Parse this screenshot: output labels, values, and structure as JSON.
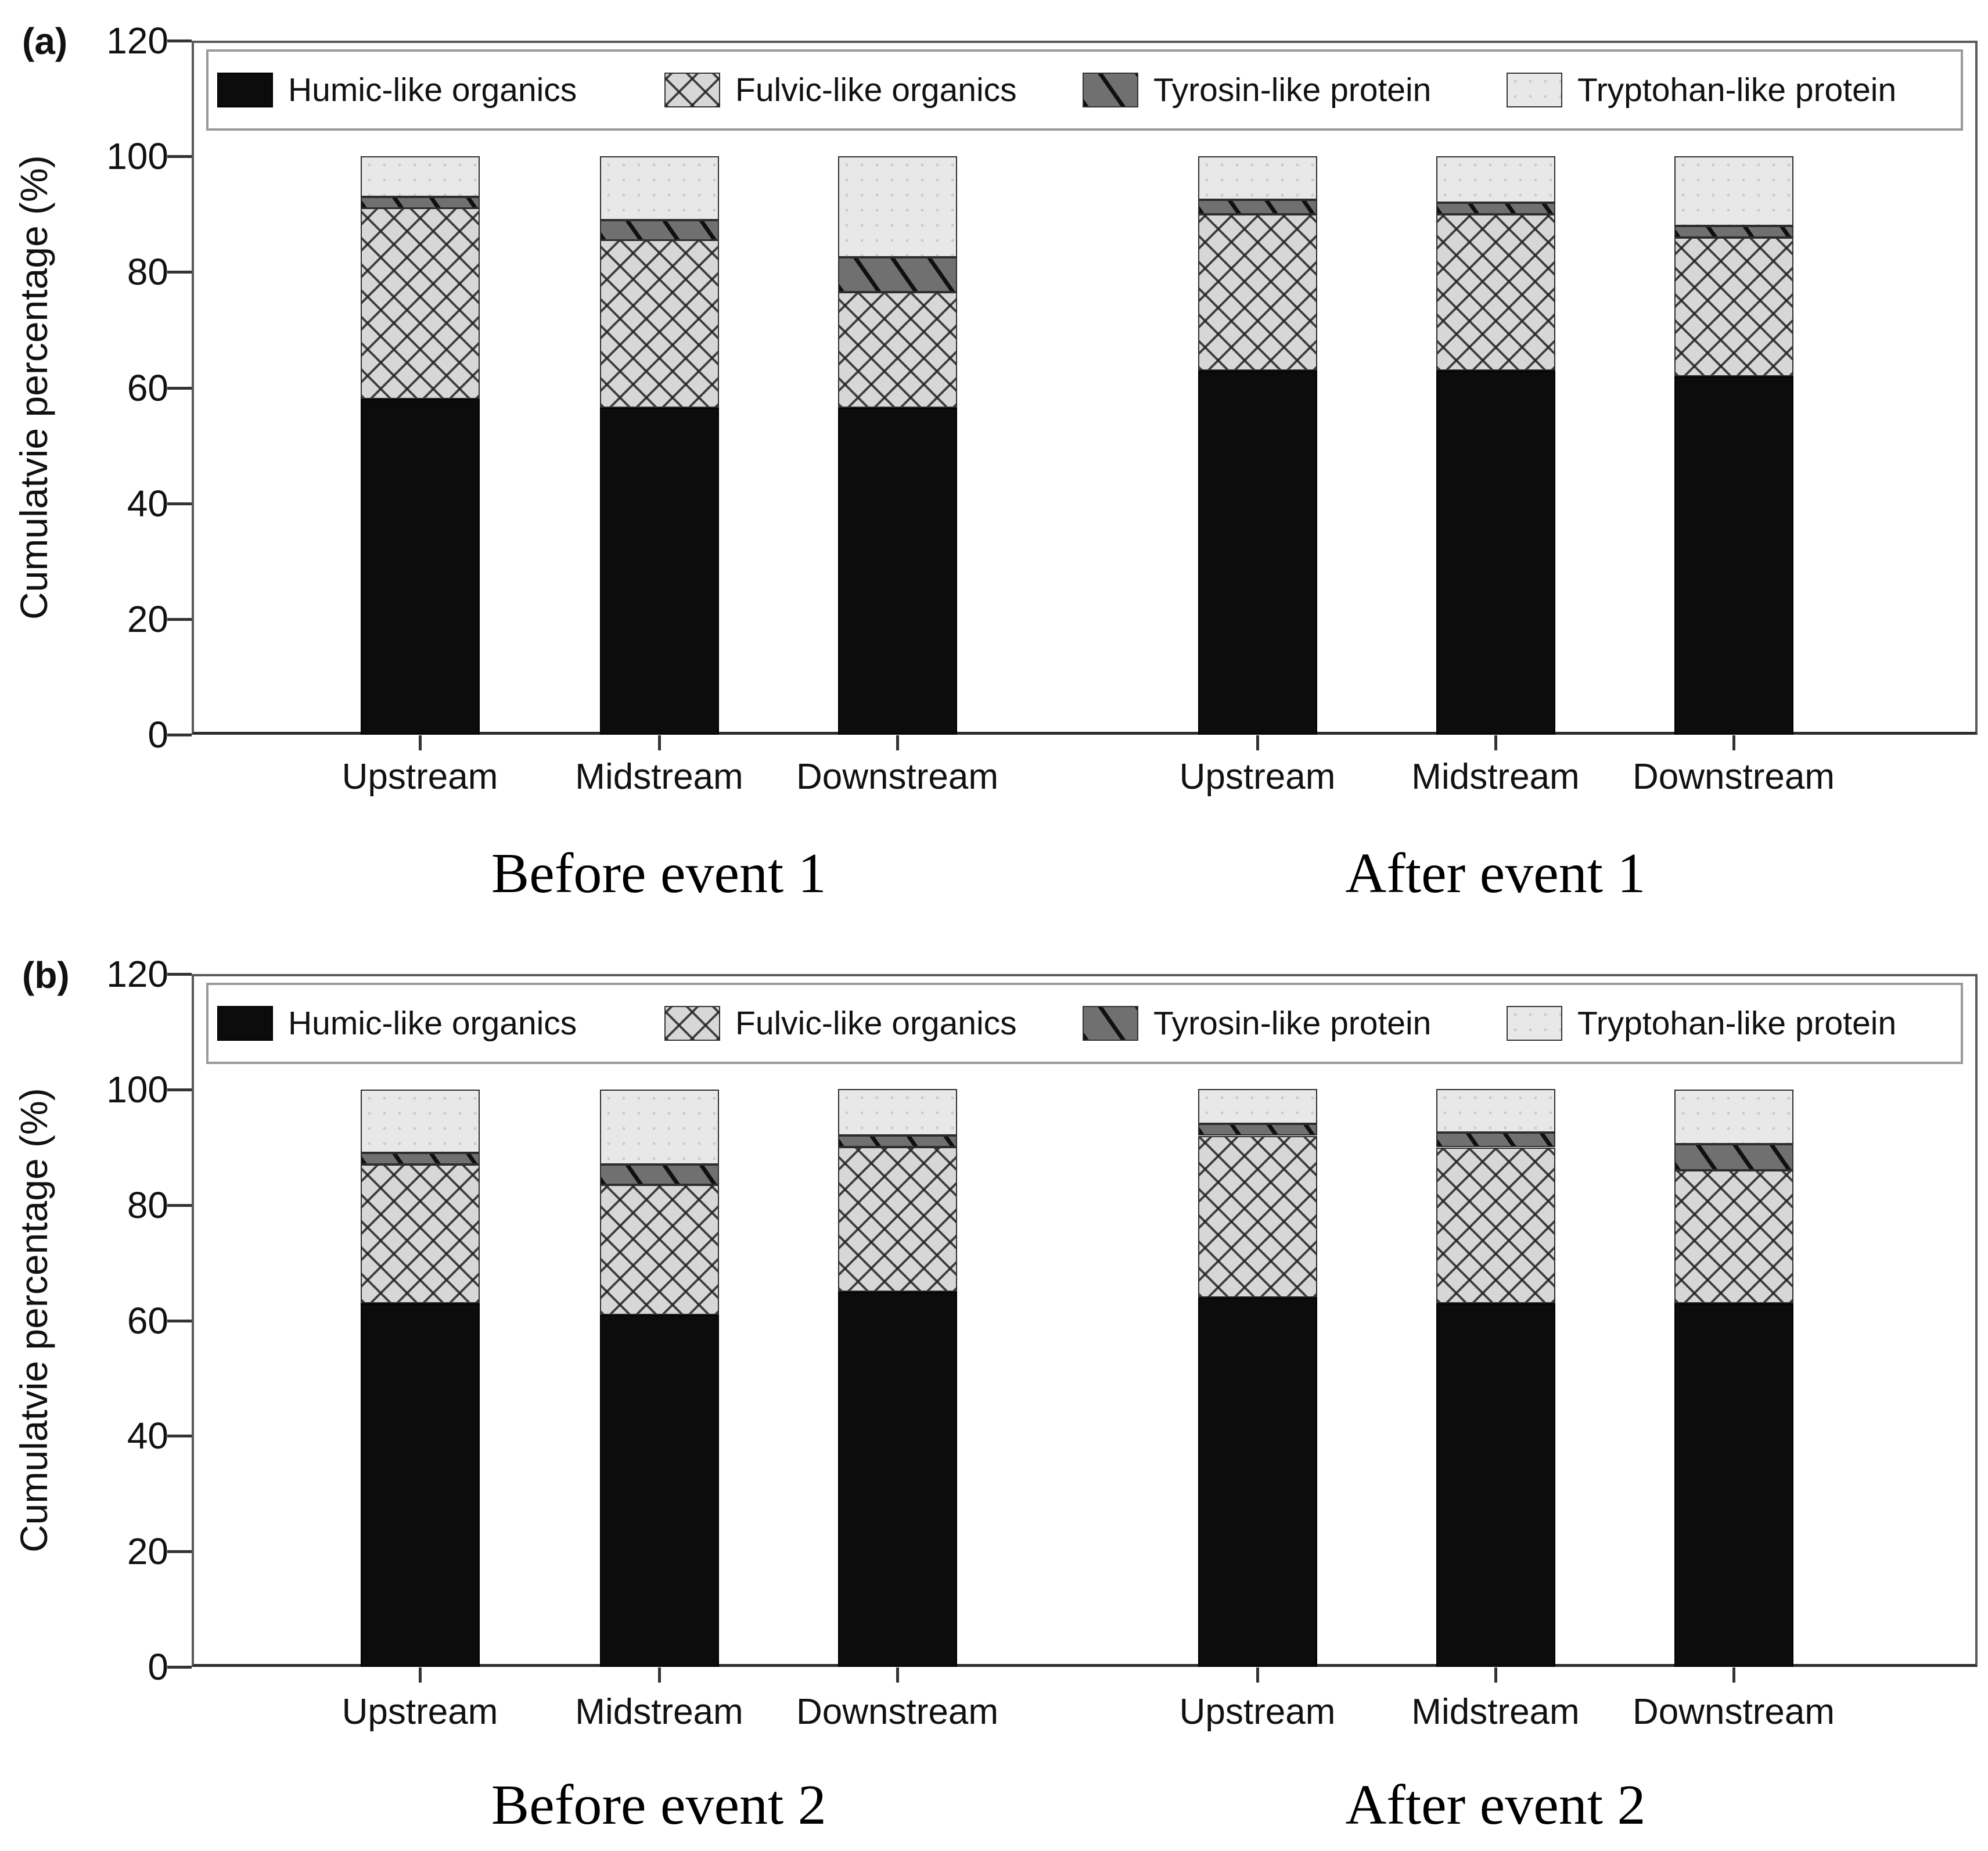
{
  "figure": {
    "y_axis_label": "Cumulatvie percentage (%)",
    "series_patterns": [
      "humic",
      "fulvic",
      "tyrosin",
      "tryptohan"
    ],
    "colors": {
      "humic_fill": "#0c0c0c",
      "fulvic_base": "#d7d7d7",
      "tyrosin_base": "#707070",
      "tryptohan_base": "#e8e8e8",
      "axis": "#333333",
      "text": "#111111"
    }
  },
  "chart_data": [
    {
      "panel": "(a)",
      "type": "bar",
      "stacked": true,
      "grid": false,
      "legend_position": "top-inside",
      "ylabel": "Cumulatvie percentage (%)",
      "ylim": [
        0,
        120
      ],
      "yticks": [
        0,
        20,
        40,
        60,
        80,
        100,
        120
      ],
      "categories": [
        "Upstream",
        "Midstream",
        "Downstream",
        "Upstream",
        "Midstream",
        "Downstream"
      ],
      "groups": [
        {
          "label": "Before event 1",
          "bar_indices": [
            0,
            1,
            2
          ]
        },
        {
          "label": "After event 1",
          "bar_indices": [
            3,
            4,
            5
          ]
        }
      ],
      "series": [
        {
          "name": "Humic-like organics",
          "values": [
            58.0,
            56.5,
            56.5,
            63.0,
            63.0,
            62.0
          ]
        },
        {
          "name": "Fulvic-like organics",
          "values": [
            33.0,
            29.0,
            20.0,
            27.0,
            27.0,
            24.0
          ]
        },
        {
          "name": "Tyrosin-like protein",
          "values": [
            2.0,
            3.5,
            6.0,
            2.5,
            2.0,
            2.0
          ]
        },
        {
          "name": "Tryptohan-like protein",
          "values": [
            7.0,
            11.0,
            17.5,
            7.5,
            8.0,
            12.0
          ]
        }
      ]
    },
    {
      "panel": "(b)",
      "type": "bar",
      "stacked": true,
      "grid": false,
      "legend_position": "top-inside",
      "ylabel": "Cumulatvie percentage (%)",
      "ylim": [
        0,
        120
      ],
      "yticks": [
        0,
        20,
        40,
        60,
        80,
        100,
        120
      ],
      "categories": [
        "Upstream",
        "Midstream",
        "Downstream",
        "Upstream",
        "Midstream",
        "Downstream"
      ],
      "groups": [
        {
          "label": "Before event 2",
          "bar_indices": [
            0,
            1,
            2
          ]
        },
        {
          "label": "After event 2",
          "bar_indices": [
            3,
            4,
            5
          ]
        }
      ],
      "series": [
        {
          "name": "Humic-like organics",
          "values": [
            63.0,
            61.0,
            65.0,
            64.0,
            63.0,
            63.0
          ]
        },
        {
          "name": "Fulvic-like organics",
          "values": [
            24.0,
            22.5,
            25.0,
            28.0,
            27.0,
            23.0
          ]
        },
        {
          "name": "Tyrosin-like protein",
          "values": [
            2.0,
            3.5,
            2.0,
            2.0,
            2.5,
            4.5
          ]
        },
        {
          "name": "Tryptohan-like protein",
          "values": [
            11.0,
            13.0,
            8.0,
            6.0,
            7.5,
            9.5
          ]
        }
      ]
    }
  ]
}
